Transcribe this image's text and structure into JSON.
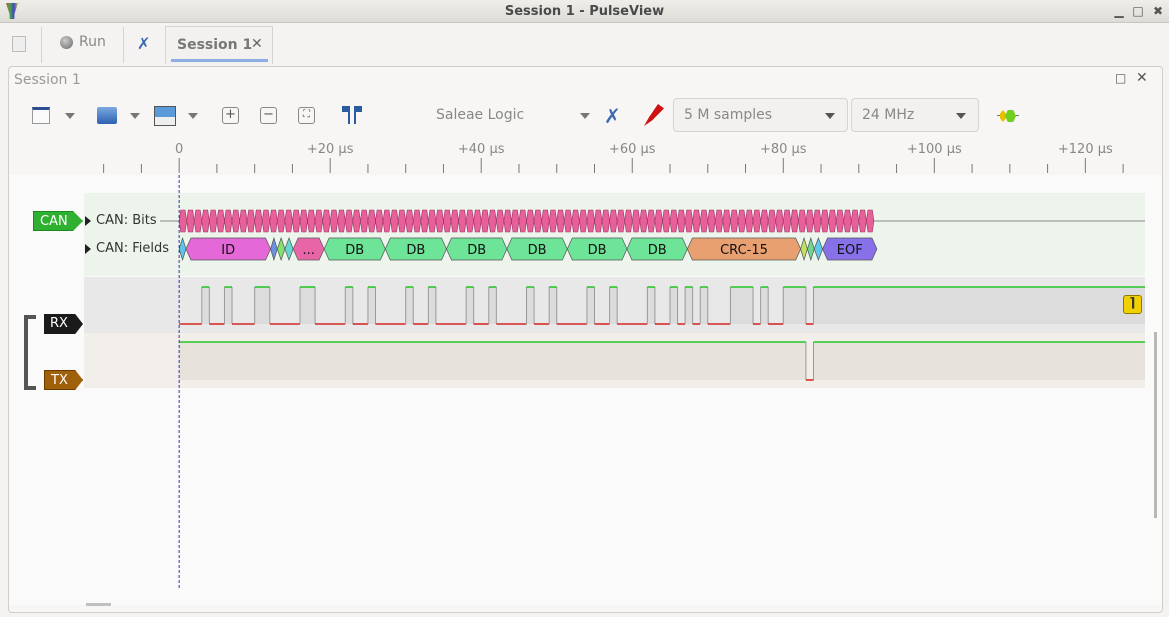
{
  "window": {
    "title": "Session 1 - PulseView"
  },
  "tabs": {
    "run_label": "Run",
    "session_tab_label": "Session 1",
    "close_glyph": "✕"
  },
  "session": {
    "title": "Session 1"
  },
  "toolbar": {
    "device": "Saleae Logic",
    "samples": "5 M samples",
    "samplerate": "24 MHz"
  },
  "icons": [
    "new-session-icon",
    "run-dot-icon",
    "settings-tools-icon",
    "new-view-icon",
    "open-icon",
    "save-icon",
    "zoom-in-icon",
    "zoom-out-icon",
    "zoom-fit-icon",
    "cursors-icon",
    "device-config-icon",
    "probe-icon",
    "decoder-icon",
    "trigger-falling-edge-icon"
  ],
  "colors": {
    "can_tag": "#30b030",
    "rx_tag": "#1a1a1a",
    "tx_tag": "#a0600a",
    "high": "#00c000",
    "low": "#d00000",
    "bits": "#e8609a",
    "cursor": "#3030b0"
  },
  "ruler": {
    "unit": "µs",
    "labels": [
      "0",
      "+20 µs",
      "+40 µs",
      "+60 µs",
      "+80 µs",
      "+100 µs",
      "+120 µs"
    ]
  },
  "traces": {
    "can": {
      "tag": "CAN",
      "rows": [
        "CAN: Bits",
        "CAN: Fields"
      ]
    },
    "rx": {
      "tag": "RX"
    },
    "tx": {
      "tag": "TX"
    }
  },
  "chart_data": {
    "type": "timing",
    "x_unit": "µs",
    "xlim": [
      -12.6,
      127.9
    ],
    "can_bits": {
      "start": 0,
      "end": 92,
      "bit_time": 1
    },
    "can_fields": [
      {
        "label": "",
        "start": 0,
        "end": 0.9,
        "color": "#5bc6e8"
      },
      {
        "label": "ID",
        "start": 0.9,
        "end": 12.1,
        "color": "#e468d8"
      },
      {
        "label": "",
        "start": 12.1,
        "end": 13,
        "color": "#6a90e0"
      },
      {
        "label": "",
        "start": 13,
        "end": 14,
        "color": "#84e070"
      },
      {
        "label": "",
        "start": 14,
        "end": 15.1,
        "color": "#66d8d0"
      },
      {
        "label": "...",
        "start": 15.1,
        "end": 19.2,
        "color": "#e866a8"
      },
      {
        "label": "DB",
        "start": 19.2,
        "end": 27.3,
        "color": "#6ee498"
      },
      {
        "label": "DB",
        "start": 27.3,
        "end": 35.4,
        "color": "#6ee498"
      },
      {
        "label": "DB",
        "start": 35.4,
        "end": 43.4,
        "color": "#6ee498"
      },
      {
        "label": "DB",
        "start": 43.4,
        "end": 51.4,
        "color": "#6ee498"
      },
      {
        "label": "DB",
        "start": 51.4,
        "end": 59.3,
        "color": "#6ee498"
      },
      {
        "label": "DB",
        "start": 59.3,
        "end": 67.3,
        "color": "#6ee498"
      },
      {
        "label": "CRC-15",
        "start": 67.3,
        "end": 82.3,
        "color": "#e8a070"
      },
      {
        "label": "",
        "start": 82.3,
        "end": 83.2,
        "color": "#c4e060"
      },
      {
        "label": "",
        "start": 83.2,
        "end": 84.1,
        "color": "#70d890"
      },
      {
        "label": "",
        "start": 84.1,
        "end": 85.2,
        "color": "#60c8e8"
      },
      {
        "label": "EOF",
        "start": 85.2,
        "end": 92.4,
        "color": "#8870e8"
      }
    ],
    "rx_high": [
      [
        3,
        4
      ],
      [
        6,
        7
      ],
      [
        10,
        12
      ],
      [
        16,
        18
      ],
      [
        22,
        23
      ],
      [
        25,
        26
      ],
      [
        30,
        31
      ],
      [
        33,
        34
      ],
      [
        38,
        39
      ],
      [
        41,
        42
      ],
      [
        46,
        47
      ],
      [
        49,
        50
      ],
      [
        54,
        55
      ],
      [
        57,
        58
      ],
      [
        62,
        63
      ],
      [
        65,
        66
      ],
      [
        67,
        68
      ],
      [
        69,
        70
      ],
      [
        73,
        76
      ],
      [
        77,
        78
      ],
      [
        80,
        83
      ],
      [
        84,
        127.9
      ]
    ],
    "tx_low": [
      [
        83,
        84
      ]
    ]
  }
}
